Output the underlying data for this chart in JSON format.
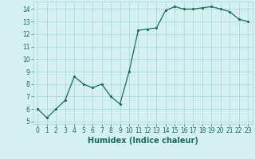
{
  "x": [
    0,
    1,
    2,
    3,
    4,
    5,
    6,
    7,
    8,
    9,
    10,
    11,
    12,
    13,
    14,
    15,
    16,
    17,
    18,
    19,
    20,
    21,
    22,
    23
  ],
  "y": [
    6.0,
    5.3,
    6.0,
    6.7,
    8.6,
    8.0,
    7.7,
    8.0,
    7.0,
    6.4,
    9.0,
    12.3,
    12.4,
    12.5,
    13.9,
    14.2,
    14.0,
    14.0,
    14.1,
    14.2,
    14.0,
    13.8,
    13.2,
    13.0
  ],
  "xlabel": "Humidex (Indice chaleur)",
  "xlim": [
    -0.5,
    23.5
  ],
  "ylim": [
    4.8,
    14.6
  ],
  "yticks": [
    5,
    6,
    7,
    8,
    9,
    10,
    11,
    12,
    13,
    14
  ],
  "xticks": [
    0,
    1,
    2,
    3,
    4,
    5,
    6,
    7,
    8,
    9,
    10,
    11,
    12,
    13,
    14,
    15,
    16,
    17,
    18,
    19,
    20,
    21,
    22,
    23
  ],
  "line_color": "#1a6b5a",
  "marker_color": "#1a6b5a",
  "bg_color": "#d4f0f0",
  "grid_color": "#a8d8d8",
  "tick_color": "#1a6b5a",
  "xlabel_color": "#1a6b5a",
  "tick_fontsize": 5.5,
  "xlabel_fontsize": 7.0
}
